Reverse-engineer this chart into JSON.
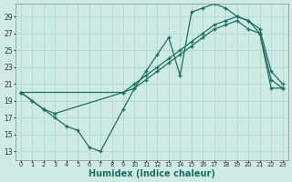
{
  "bg_color": "#ceeae4",
  "line_color": "#1a7060",
  "grid_color": "#aed4cc",
  "xlabel": "Humidex (Indice chaleur)",
  "xlabel_fontsize": 7,
  "yticks": [
    13,
    15,
    17,
    19,
    21,
    23,
    25,
    27,
    29
  ],
  "xticks": [
    0,
    1,
    2,
    3,
    4,
    5,
    6,
    7,
    8,
    9,
    10,
    11,
    12,
    13,
    14,
    15,
    16,
    17,
    18,
    19,
    20,
    21,
    22,
    23
  ],
  "xlim": [
    -0.5,
    23.5
  ],
  "ylim": [
    12.0,
    30.5
  ],
  "line1_x": [
    0,
    1,
    2,
    3,
    4,
    5,
    6,
    7,
    9,
    10,
    11,
    12,
    13,
    14,
    15,
    16,
    17,
    18,
    19,
    20,
    21,
    22,
    23
  ],
  "line1_y": [
    20.0,
    19.0,
    18.0,
    17.0,
    16.0,
    15.5,
    13.5,
    13.0,
    18.0,
    20.5,
    22.5,
    24.5,
    26.5,
    22.0,
    29.5,
    30.0,
    30.5,
    30.0,
    29.0,
    28.5,
    27.0,
    20.5,
    20.5
  ],
  "line2_x": [
    0,
    1,
    2,
    3,
    9,
    10,
    11,
    12,
    13,
    14,
    15,
    16,
    17,
    18,
    19,
    20,
    21,
    22,
    23
  ],
  "line2_y": [
    20.0,
    19.0,
    18.0,
    17.5,
    20.0,
    21.0,
    22.0,
    23.0,
    24.0,
    25.0,
    26.0,
    27.0,
    28.0,
    28.5,
    29.0,
    28.5,
    27.5,
    22.5,
    21.0
  ],
  "line3_x": [
    0,
    9,
    10,
    11,
    12,
    13,
    14,
    15,
    16,
    17,
    18,
    19,
    20,
    21,
    22,
    23
  ],
  "line3_y": [
    20.0,
    20.0,
    20.5,
    21.5,
    22.5,
    23.5,
    24.5,
    25.5,
    26.5,
    27.5,
    28.0,
    28.5,
    27.5,
    27.0,
    21.5,
    20.5
  ]
}
